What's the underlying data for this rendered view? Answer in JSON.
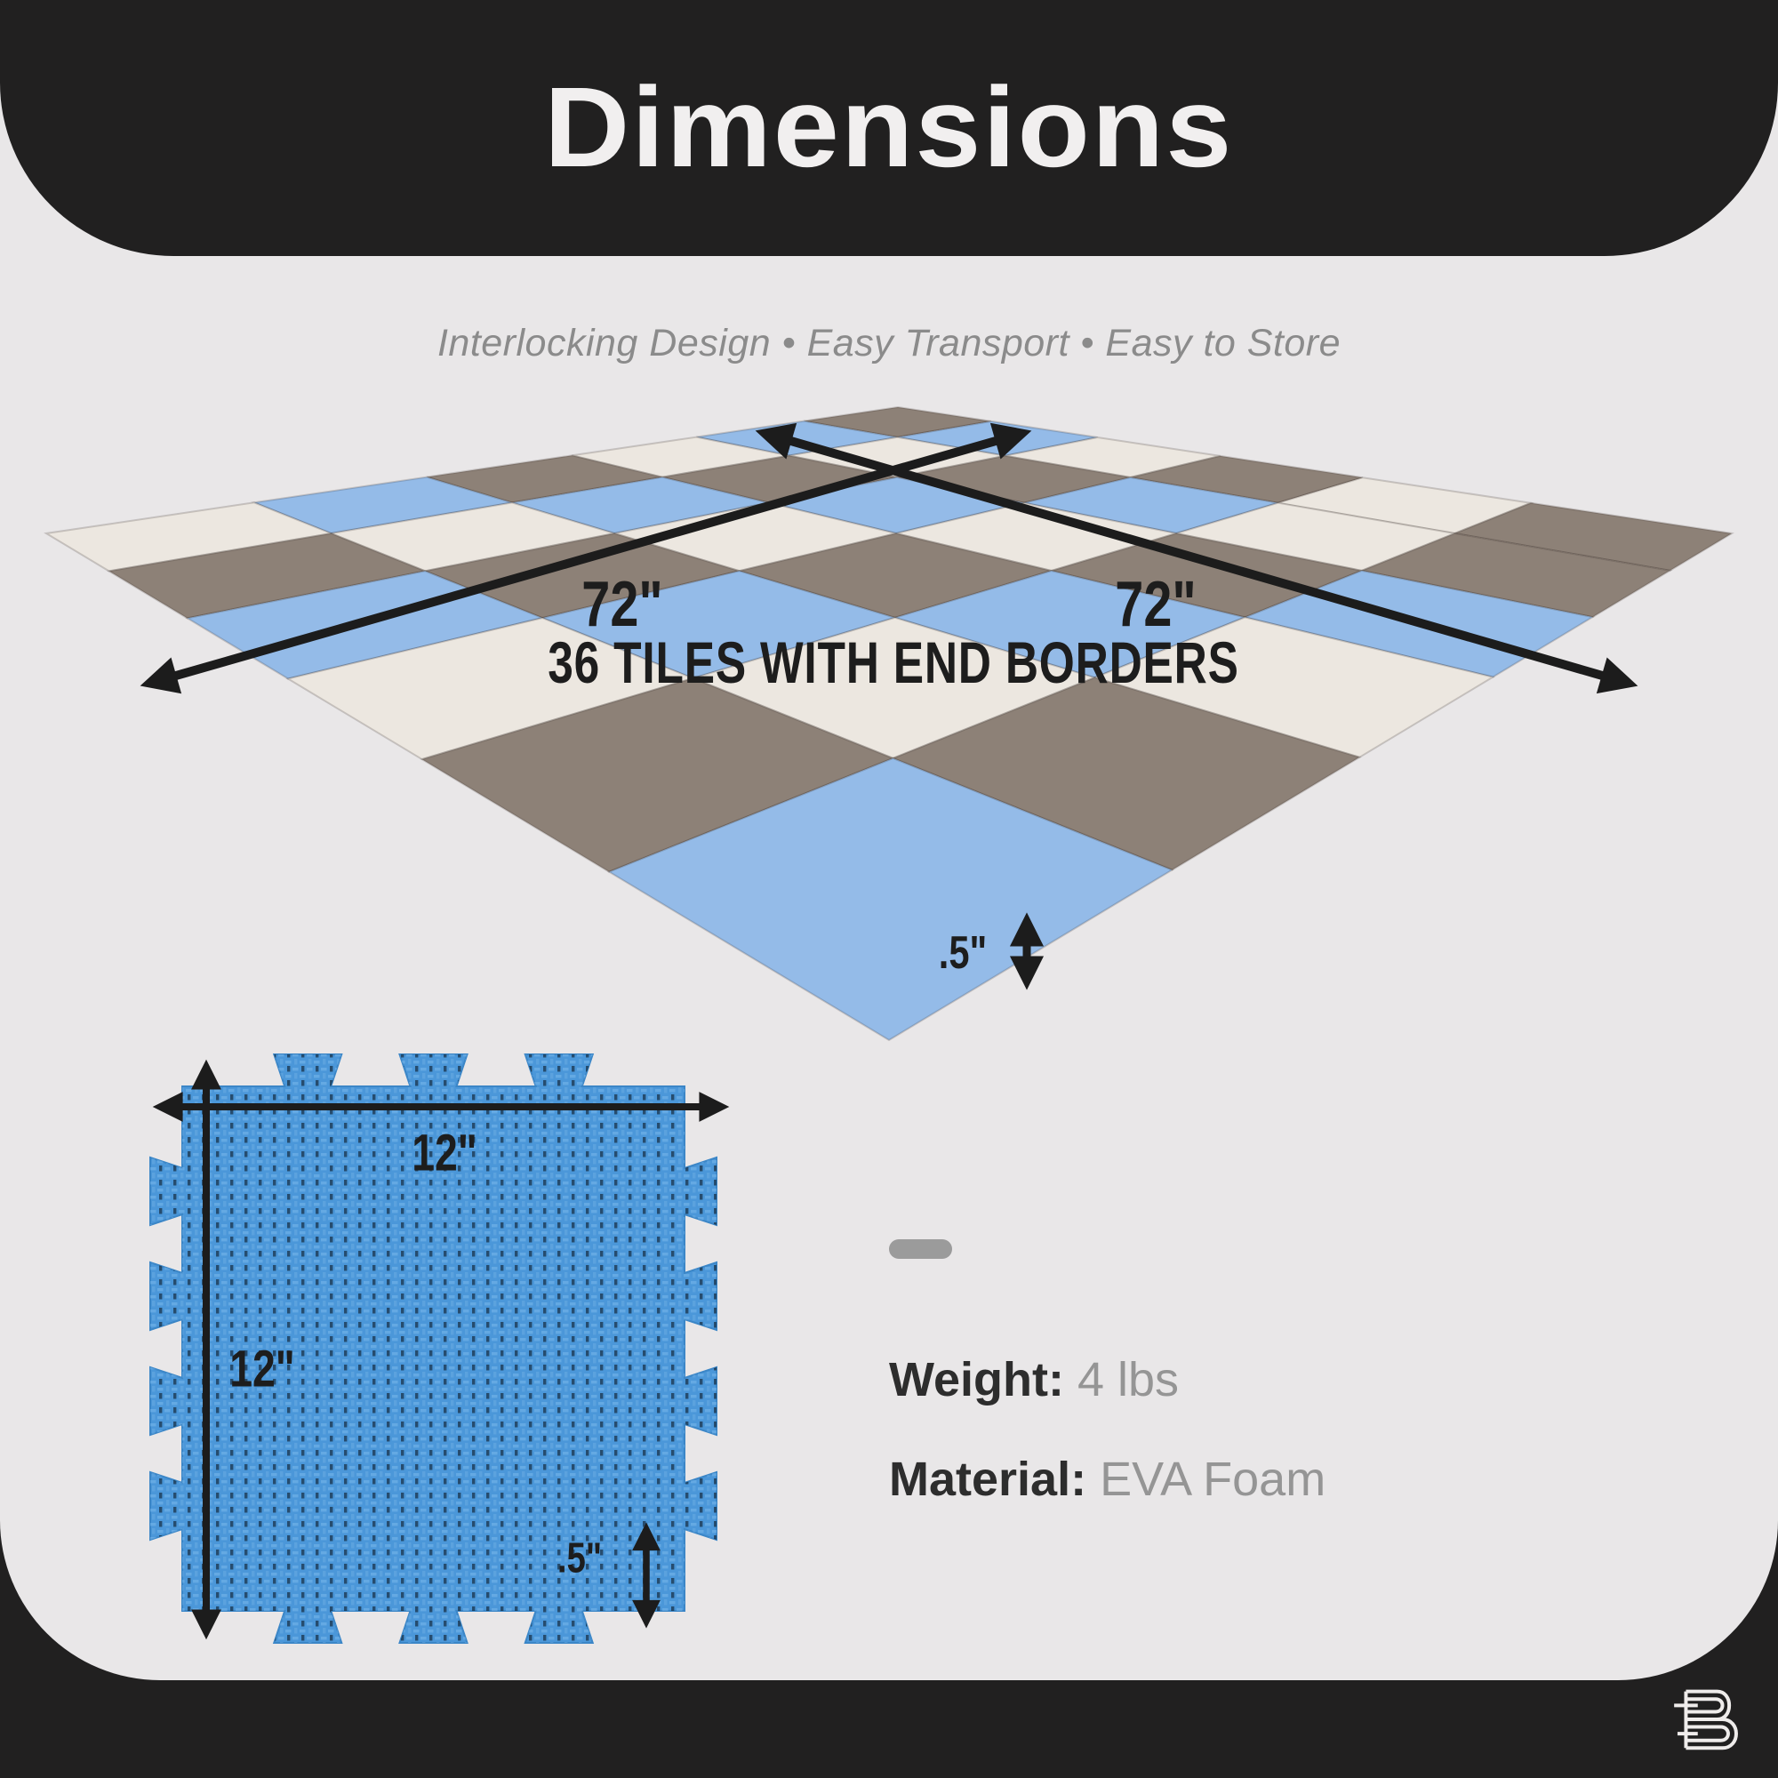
{
  "header": {
    "title": "Dimensions"
  },
  "page": {
    "subtitle": "Interlocking Design  •  Easy Transport  •  Easy to Store"
  },
  "mat": {
    "label_left": "72\"",
    "label_right": "72\"",
    "caption": "36 TILES WITH END BORDERS",
    "thickness_label": ".5\"",
    "grid": [
      [
        "G",
        "B",
        "W",
        "G",
        "W",
        "G"
      ],
      [
        "B",
        "W",
        "G",
        "B",
        "W",
        "G"
      ],
      [
        "W",
        "G",
        "B",
        "W",
        "G",
        "B"
      ],
      [
        "G",
        "B",
        "W",
        "G",
        "B",
        "W"
      ],
      [
        "B",
        "W",
        "G",
        "B",
        "W",
        "G"
      ],
      [
        "W",
        "G",
        "B",
        "W",
        "G",
        "B"
      ]
    ],
    "colors": {
      "G": "#8d8177",
      "B": "#94bbe8",
      "W": "#ece7e0",
      "seam": "rgba(60,52,45,0.22)"
    }
  },
  "tile": {
    "width_label": "12\"",
    "height_label": "12\"",
    "thickness_label": ".5\"",
    "base_color": "#4b97d9",
    "weave_color": "#79b7ec",
    "edge_color": "#3b86c7"
  },
  "specs": {
    "weight_label": "Weight:",
    "weight_value": "4 lbs",
    "material_label": "Material:",
    "material_value": "EVA Foam"
  },
  "brand": {
    "logo_letter": "B"
  },
  "theme": {
    "background_dark": "#212020",
    "background_light": "#e9e7e8",
    "arrow_color": "#1c1c1c",
    "text_dark": "#1d1d1d",
    "text_gray": "#8b8b8b"
  }
}
